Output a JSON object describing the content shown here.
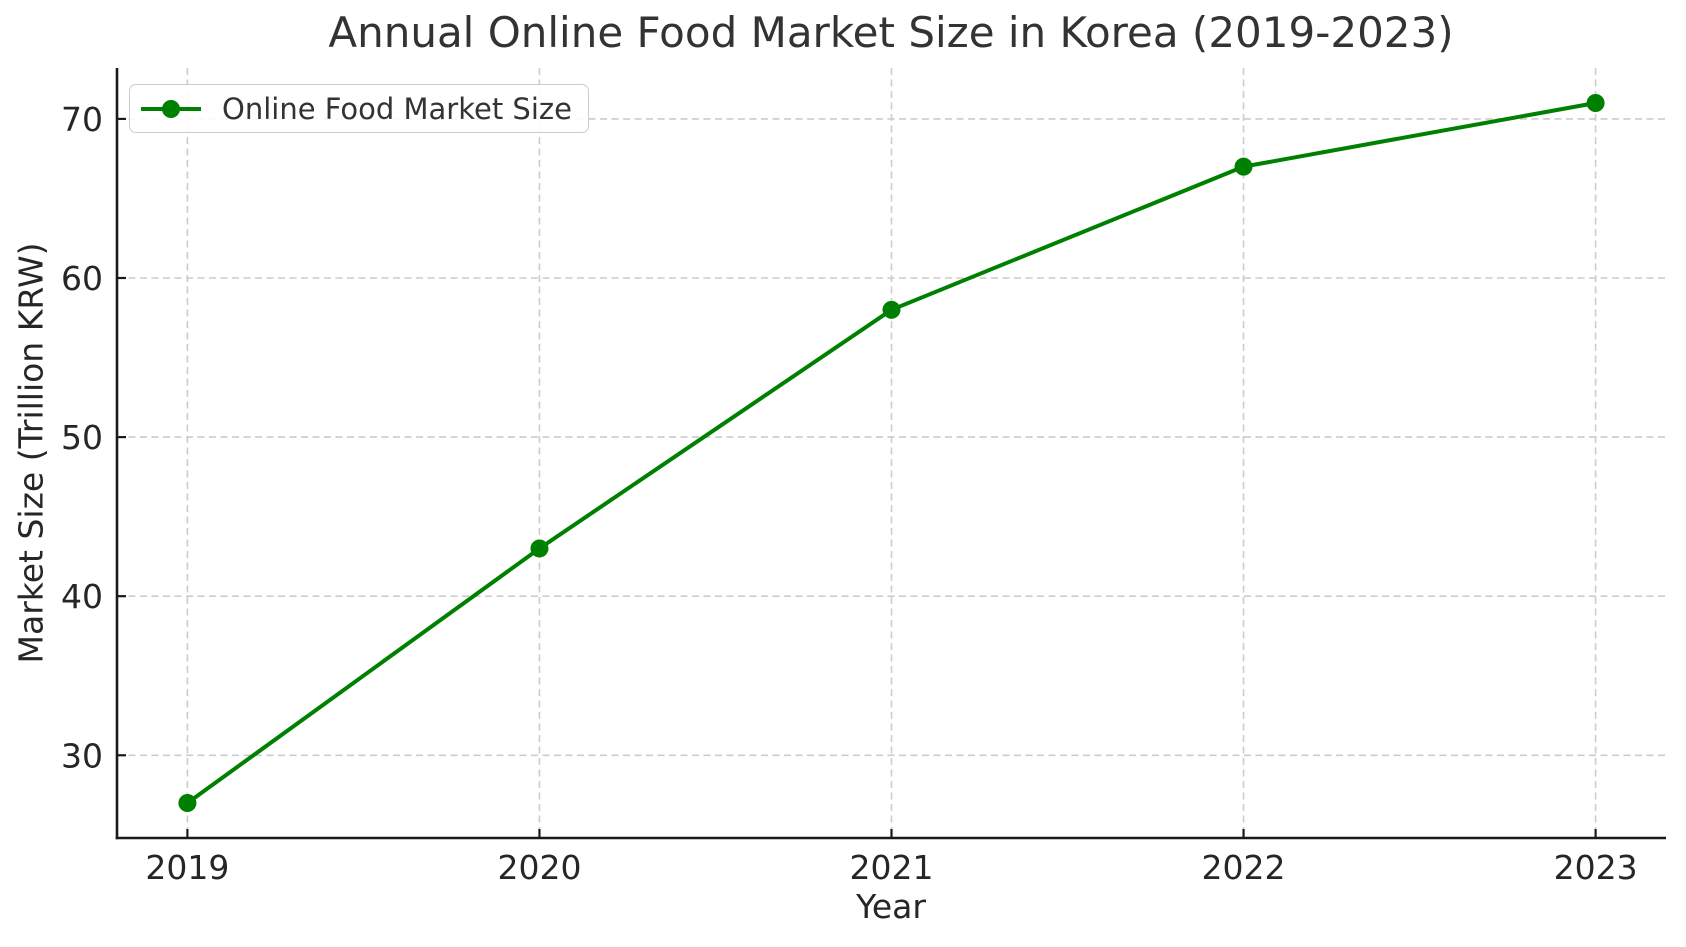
{
  "chart_data": {
    "type": "line",
    "title": "Annual Online Food Market Size in Korea (2019-2023)",
    "xlabel": "Year",
    "ylabel": "Market Size (Trillion KRW)",
    "categories": [
      2019,
      2020,
      2021,
      2022,
      2023
    ],
    "series": [
      {
        "name": "Online Food Market Size",
        "values": [
          27,
          43,
          58,
          67,
          71
        ],
        "color": "#008000",
        "marker": "circle"
      }
    ],
    "xticks": [
      2019,
      2020,
      2021,
      2022,
      2023
    ],
    "yticks": [
      30,
      40,
      50,
      60,
      70
    ],
    "xlim": [
      2018.8,
      2023.2
    ],
    "ylim": [
      24.8,
      73.2
    ],
    "grid": true,
    "grid_style": "dashed",
    "legend": {
      "position": "upper left",
      "entries": [
        "Online Food Market Size"
      ]
    }
  }
}
